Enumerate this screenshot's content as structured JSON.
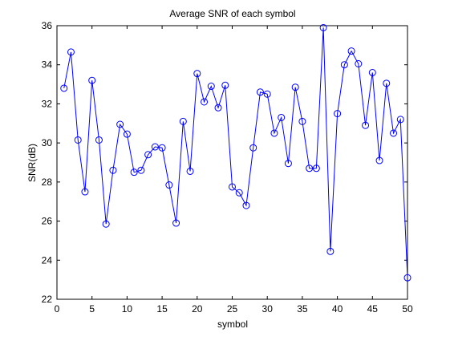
{
  "chart_data": {
    "type": "line",
    "title": "Average SNR of each symbol",
    "xlabel": "symbol",
    "ylabel": "SNR(dB)",
    "xlim": [
      0,
      50
    ],
    "ylim": [
      22,
      36
    ],
    "xticks": [
      0,
      5,
      10,
      15,
      20,
      25,
      30,
      35,
      40,
      45,
      50
    ],
    "yticks": [
      22,
      24,
      26,
      28,
      30,
      32,
      34,
      36
    ],
    "xtick_labels": [
      "0",
      "5",
      "10",
      "15",
      "20",
      "25",
      "30",
      "35",
      "40",
      "45",
      "50"
    ],
    "ytick_labels": [
      "22",
      "24",
      "26",
      "28",
      "30",
      "32",
      "34",
      "36"
    ],
    "grid": false,
    "marker": "circle",
    "line_color": "#0000ff",
    "series": [
      {
        "x": [
          1,
          2,
          3,
          4,
          5,
          6,
          7,
          8,
          9,
          10,
          11,
          12,
          13,
          14,
          15,
          16,
          17,
          18,
          19,
          20,
          21,
          22,
          23,
          24,
          25,
          26,
          27,
          28,
          29,
          30,
          31,
          32,
          33,
          34,
          35,
          36,
          37,
          38,
          39,
          40,
          41,
          42,
          43,
          44,
          45,
          46,
          47,
          48,
          49,
          50
        ],
        "y": [
          32.8,
          34.65,
          30.15,
          27.5,
          33.2,
          30.15,
          25.85,
          28.6,
          30.95,
          30.45,
          28.5,
          28.6,
          29.4,
          29.8,
          29.75,
          27.85,
          25.9,
          31.1,
          28.55,
          33.55,
          32.1,
          32.9,
          31.8,
          32.95,
          27.75,
          27.45,
          26.8,
          29.75,
          32.6,
          32.5,
          30.5,
          31.3,
          28.95,
          32.85,
          31.1,
          28.7,
          28.7,
          35.9,
          24.45,
          31.5,
          34.0,
          34.7,
          34.05,
          30.9,
          33.6,
          29.1,
          33.05,
          30.5,
          31.2,
          23.1
        ]
      }
    ]
  }
}
